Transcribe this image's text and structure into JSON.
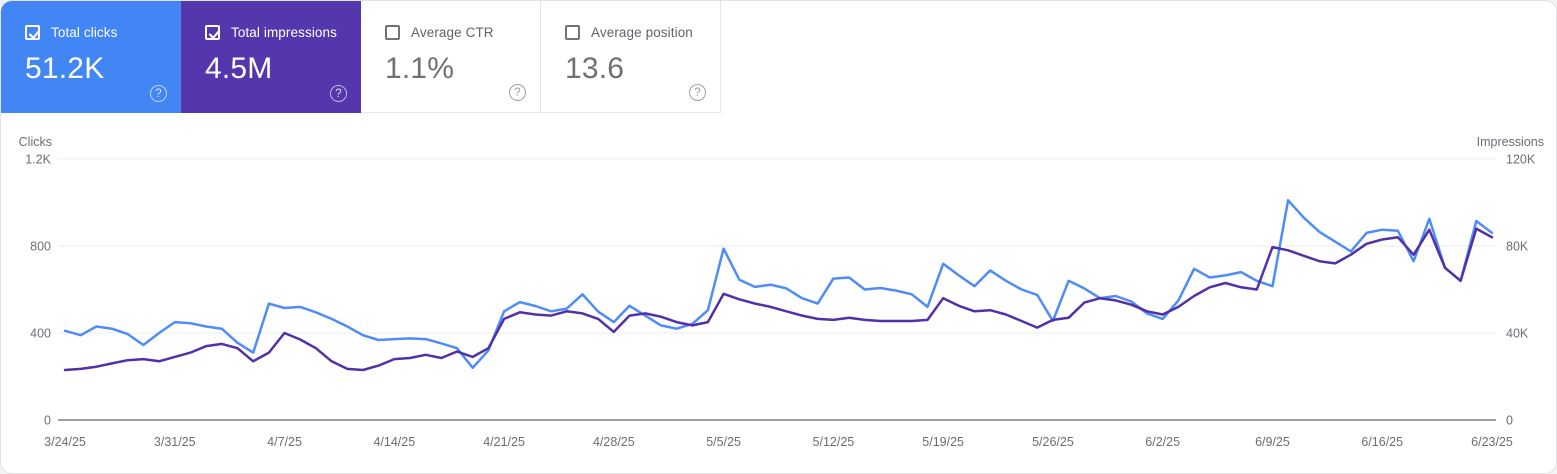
{
  "cards": [
    {
      "label": "Total clicks",
      "value": "51.2K",
      "checked": true,
      "bg": "#4285f4"
    },
    {
      "label": "Total impressions",
      "value": "4.5M",
      "checked": true,
      "bg": "#5636ad"
    },
    {
      "label": "Average CTR",
      "value": "1.1%",
      "checked": false,
      "bg": "#ffffff"
    },
    {
      "label": "Average position",
      "value": "13.6",
      "checked": false,
      "bg": "#ffffff"
    }
  ],
  "icons": {
    "help": "?"
  },
  "chart_data": {
    "type": "line",
    "title": "",
    "granularity": "daily",
    "x_start": "3/24/25",
    "x_end": "6/23/25",
    "x_tick_labels": [
      "3/24/25",
      "3/31/25",
      "4/7/25",
      "4/14/25",
      "4/21/25",
      "4/28/25",
      "5/5/25",
      "5/12/25",
      "5/19/25",
      "5/26/25",
      "6/2/25",
      "6/9/25",
      "6/16/25",
      "6/23/25"
    ],
    "left_axis": {
      "title": "Clicks",
      "max": 1200,
      "ticks": [
        {
          "label": "1.2K",
          "value": 1200
        },
        {
          "label": "800",
          "value": 800
        },
        {
          "label": "400",
          "value": 400
        },
        {
          "label": "0",
          "value": 0
        }
      ]
    },
    "right_axis": {
      "title": "Impressions",
      "max": 120000,
      "ticks": [
        {
          "label": "120K",
          "value": 120000
        },
        {
          "label": "80K",
          "value": 80000
        },
        {
          "label": "40K",
          "value": 40000
        },
        {
          "label": "0",
          "value": 0
        }
      ]
    },
    "grid": true,
    "legend_position": "none",
    "series": [
      {
        "name": "Total clicks",
        "axis": "left",
        "color": "#4e8df7",
        "values": [
          410,
          390,
          430,
          420,
          395,
          345,
          400,
          450,
          445,
          430,
          420,
          355,
          310,
          535,
          515,
          520,
          495,
          465,
          430,
          390,
          368,
          372,
          375,
          372,
          352,
          330,
          240,
          320,
          500,
          542,
          524,
          500,
          512,
          578,
          498,
          450,
          525,
          480,
          435,
          420,
          442,
          505,
          788,
          645,
          612,
          622,
          605,
          560,
          535,
          650,
          655,
          600,
          607,
          595,
          578,
          520,
          718,
          665,
          615,
          688,
          640,
          600,
          575,
          455,
          640,
          605,
          560,
          570,
          545,
          490,
          465,
          550,
          695,
          655,
          665,
          680,
          640,
          615,
          1010,
          930,
          865,
          820,
          775,
          860,
          875,
          870,
          730,
          925,
          700,
          640,
          915,
          860
        ]
      },
      {
        "name": "Total impressions",
        "axis": "right",
        "color": "#5230a8",
        "values": [
          23000,
          23500,
          24500,
          26000,
          27500,
          28000,
          27000,
          29000,
          31000,
          34000,
          35000,
          33000,
          27000,
          31000,
          40000,
          37000,
          33000,
          27000,
          23500,
          23000,
          25000,
          28000,
          28500,
          30000,
          28500,
          31500,
          29000,
          33000,
          46500,
          49500,
          48500,
          48000,
          50000,
          49000,
          46500,
          40500,
          48000,
          49000,
          47500,
          45000,
          43500,
          45000,
          58000,
          55500,
          53500,
          52000,
          50000,
          48000,
          46500,
          46000,
          47000,
          46000,
          45500,
          45500,
          45500,
          46000,
          56000,
          52500,
          50000,
          50500,
          48500,
          45500,
          42500,
          46000,
          47000,
          54000,
          56000,
          55000,
          53000,
          50000,
          48500,
          52000,
          57000,
          61000,
          63000,
          61000,
          60000,
          79500,
          78000,
          75500,
          73000,
          72000,
          76000,
          81000,
          83000,
          84000,
          76000,
          87500,
          70000,
          64000,
          88000,
          84000
        ]
      }
    ]
  }
}
